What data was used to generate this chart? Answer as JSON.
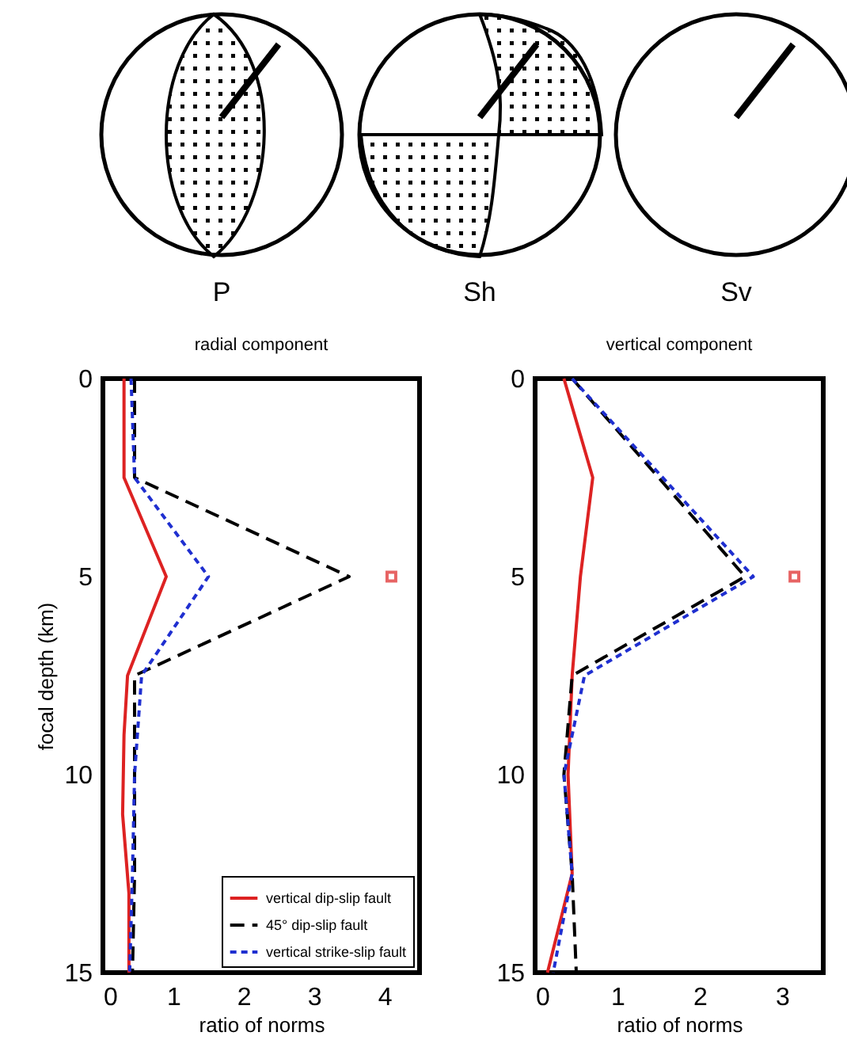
{
  "chart_data": [
    {
      "type": "line",
      "title": "radial component",
      "xlabel": "ratio of norms",
      "ylabel": "focal depth (km)",
      "orientation": "horizontal",
      "xlim": [
        0,
        4.5
      ],
      "xticks": [
        0,
        1,
        2,
        3,
        4
      ],
      "ylim": [
        15,
        0
      ],
      "yticks": [
        0,
        5,
        10,
        15
      ],
      "legend": "bottom right",
      "annotations": [
        "P",
        "Sh",
        "Sv"
      ],
      "series": [
        {
          "name": "vertical dip-slip fault",
          "color": "#dd2222",
          "line_style": "solid",
          "x": [
            0,
            2.5,
            5,
            7.5,
            9,
            11,
            13,
            15
          ],
          "values": [
            0.3,
            0.3,
            0.9,
            0.35,
            0.3,
            0.28,
            0.37,
            0.37
          ]
        },
        {
          "name": "45° dip-slip fault",
          "color": "#000000",
          "line_style": "dashed",
          "x": [
            0,
            2.5,
            5,
            7.5,
            10,
            12.5,
            15
          ],
          "values": [
            0.45,
            0.45,
            3.5,
            0.45,
            0.45,
            0.45,
            0.42
          ]
        },
        {
          "name": "vertical strike-slip fault",
          "color": "#1f2fd0",
          "line_style": "dotted",
          "x": [
            0,
            2.5,
            5,
            7.5,
            10,
            12.5,
            15
          ],
          "values": [
            0.4,
            0.45,
            1.5,
            0.55,
            0.45,
            0.42,
            0.38
          ]
        },
        {
          "type": "scatter",
          "marker": "square",
          "color": "#dd2222",
          "x": [
            5
          ],
          "values": [
            4.1
          ]
        }
      ]
    },
    {
      "type": "line",
      "title": "vertical component",
      "xlabel": "ratio of norms",
      "orientation": "horizontal",
      "xlim": [
        0,
        3.5
      ],
      "xticks": [
        0,
        1,
        2,
        3
      ],
      "ylim": [
        15,
        0
      ],
      "yticks": [
        0,
        5,
        10,
        15
      ],
      "series": [
        {
          "color": "#dd2222",
          "line_style": "solid",
          "x": [
            0,
            2.5,
            5,
            7.5,
            10,
            12.5,
            15
          ],
          "values": [
            0.35,
            0.7,
            0.55,
            0.45,
            0.4,
            0.45,
            0.15
          ]
        },
        {
          "color": "#000000",
          "line_style": "dashed",
          "x": [
            0,
            5,
            7.5,
            10,
            12.5,
            15
          ],
          "values": [
            0.45,
            2.55,
            0.45,
            0.35,
            0.45,
            0.5
          ]
        },
        {
          "color": "#1f2fd0",
          "line_style": "dotted",
          "x": [
            0,
            5,
            7.5,
            10,
            12.5,
            15
          ],
          "values": [
            0.45,
            2.65,
            0.6,
            0.35,
            0.45,
            0.22
          ]
        },
        {
          "type": "scatter",
          "marker": "square",
          "color": "#dd2222",
          "x": [
            5
          ],
          "values": [
            3.15
          ]
        }
      ]
    }
  ]
}
